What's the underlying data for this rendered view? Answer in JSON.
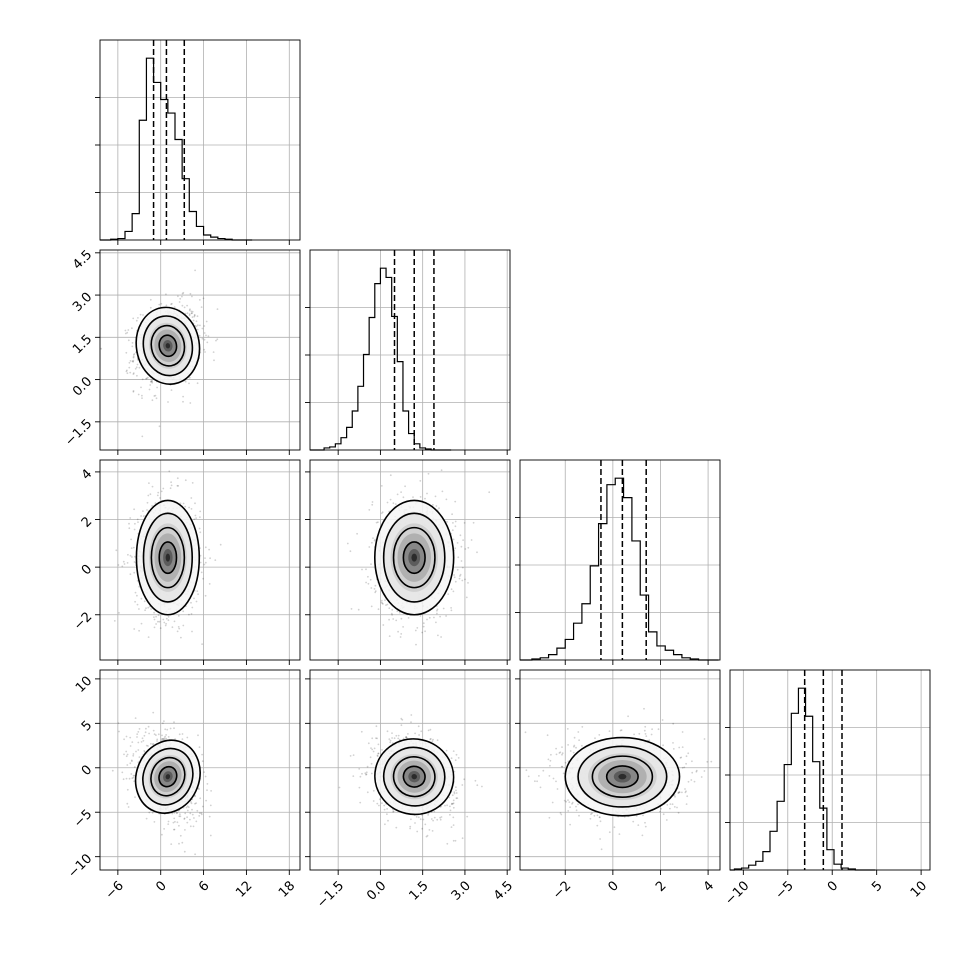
{
  "chart_data": {
    "type": "corner",
    "n_params": 4,
    "grid": true,
    "axis_ranges": [
      [
        -8.5,
        19.5
      ],
      [
        -2.5,
        4.6
      ],
      [
        -3.9,
        4.5
      ],
      [
        -11.5,
        11
      ]
    ],
    "param_ticks": [
      [
        "−6",
        "0",
        "6",
        "12",
        "18"
      ],
      [
        "−1.5",
        "0.0",
        "1.5",
        "3.0",
        "4.5"
      ],
      [
        "−2",
        "0",
        "2",
        "4"
      ],
      [
        "−10",
        "−5",
        "0",
        "5",
        "10"
      ]
    ],
    "param_tick_values": [
      [
        -6,
        0,
        6,
        12,
        18
      ],
      [
        -1.5,
        0.0,
        1.5,
        3.0,
        4.5
      ],
      [
        -2,
        0,
        2,
        4
      ],
      [
        -10,
        -5,
        0,
        5,
        10
      ]
    ],
    "left_ticks": [
      null,
      [
        "−1.5",
        "0.0",
        "1.5",
        "3.0",
        "4.5"
      ],
      [
        "−2",
        "0",
        "2",
        "4"
      ],
      [
        "−10",
        "−5",
        "0",
        "5",
        "10"
      ]
    ],
    "quantiles": [
      [
        -1.0,
        0.8,
        3.3
      ],
      [
        0.5,
        1.2,
        1.9
      ],
      [
        -0.5,
        0.4,
        1.4
      ],
      [
        -3.1,
        -1.0,
        1.1
      ]
    ],
    "histograms": [
      {
        "start": -7.0,
        "width": 1.0,
        "counts": [
          1,
          2,
          12,
          37,
          168,
          255,
          221,
          197,
          178,
          141,
          86,
          40,
          19,
          7,
          4,
          2,
          1
        ]
      },
      {
        "start": -2.0,
        "width": 0.2,
        "counts": [
          2,
          3,
          6,
          12,
          22,
          38,
          62,
          93,
          129,
          162,
          177,
          168,
          130,
          86,
          38,
          16,
          6,
          2,
          1
        ]
      },
      {
        "start": -3.4,
        "width": 0.35,
        "counts": [
          1,
          2,
          5,
          11,
          19,
          34,
          52,
          87,
          126,
          162,
          168,
          150,
          110,
          60,
          26,
          13,
          9,
          5,
          2,
          1
        ]
      },
      {
        "start": -11.0,
        "width": 0.8,
        "counts": [
          1,
          2,
          5,
          9,
          19,
          40,
          71,
          109,
          162,
          188,
          159,
          112,
          64,
          21,
          6,
          2,
          1
        ]
      }
    ],
    "joint": {
      "means": [
        1.0,
        1.2,
        0.4,
        -1.0
      ],
      "sds": [
        2.2,
        0.7,
        1.2,
        2.2
      ],
      "correlations": {
        "1-0": 0.15,
        "2-0": 0.0,
        "2-1": 0.0,
        "3-0": -0.35,
        "3-1": -0.25,
        "3-2": 0.0
      }
    }
  }
}
